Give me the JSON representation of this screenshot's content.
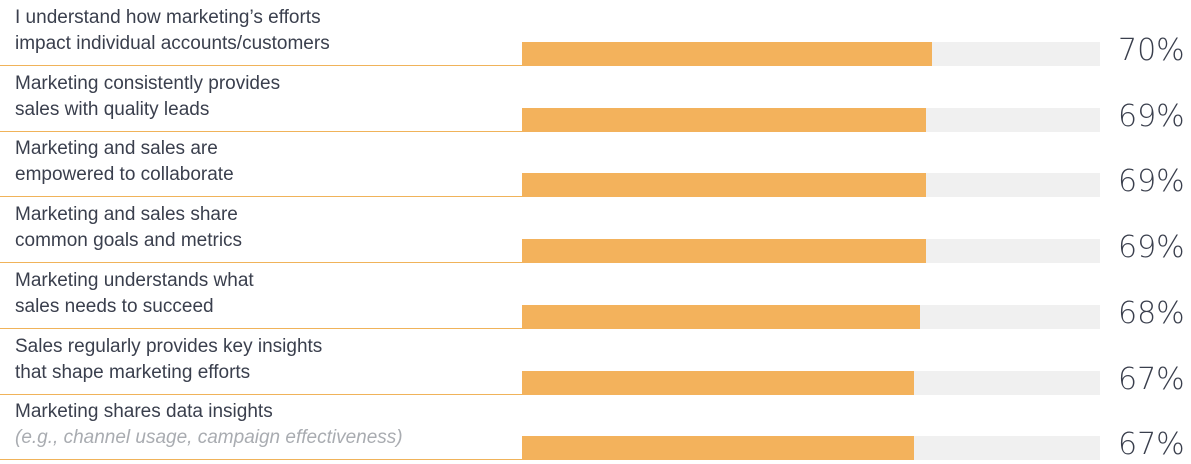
{
  "chart_data": {
    "type": "bar",
    "orientation": "horizontal",
    "xlim": [
      0,
      100
    ],
    "categories": [
      [
        "I understand how marketing’s efforts",
        "impact individual accounts/customers"
      ],
      [
        "Marketing consistently provides",
        "sales with quality leads"
      ],
      [
        "Marketing and sales are",
        "empowered to collaborate"
      ],
      [
        "Marketing and sales share",
        "common goals and metrics"
      ],
      [
        "Marketing understands what",
        "sales needs to succeed"
      ],
      [
        "Sales regularly provides key insights",
        "that shape marketing efforts"
      ],
      [
        "Marketing shares data insights",
        "(e.g., channel usage, campaign effectiveness)"
      ]
    ],
    "values": [
      70,
      69,
      69,
      69,
      68,
      67,
      67
    ],
    "value_labels": [
      "70%",
      "69%",
      "69%",
      "69%",
      "68%",
      "67%",
      "67%"
    ],
    "bar_color": "#f3b25c",
    "track_color": "#f0f0f0",
    "divider_color": "#f0b35a",
    "italic_subtitle_rows": [
      6
    ]
  }
}
